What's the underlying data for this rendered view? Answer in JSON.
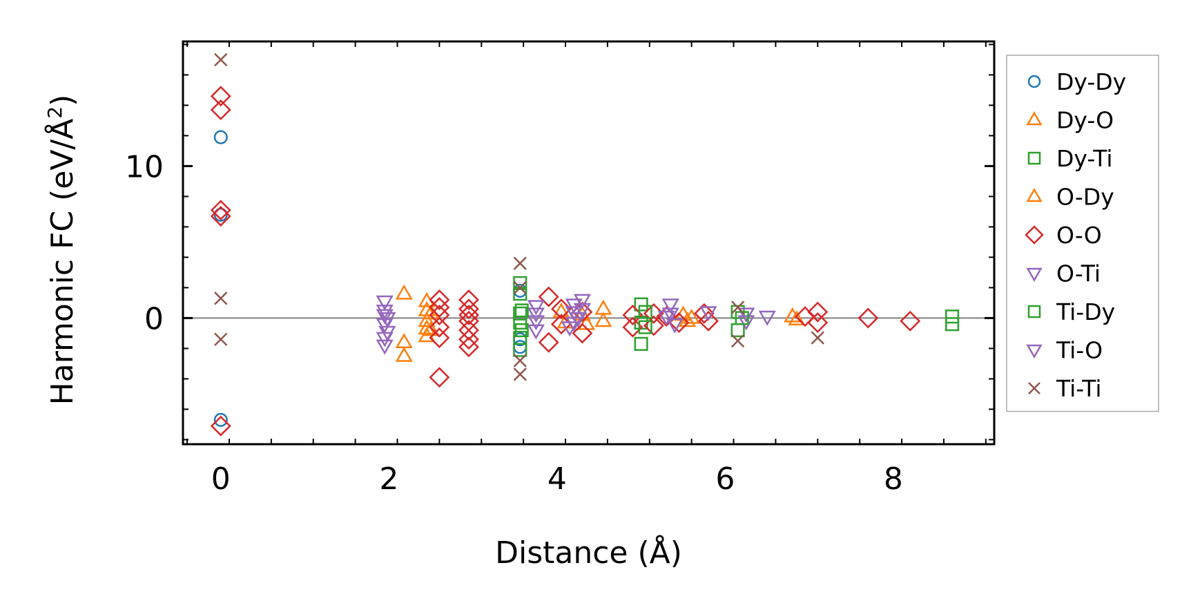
{
  "chart_data": {
    "type": "scatter",
    "title": "",
    "xlabel": "Distance (Å)",
    "ylabel_main": "Harmonic FC (eV/Å",
    "ylabel_sup": "2",
    "ylabel_close": ")",
    "xlim": [
      -0.45,
      9.2
    ],
    "ylim": [
      -8.3,
      18.2
    ],
    "xticks": [
      0,
      2,
      4,
      6,
      8
    ],
    "yticks": [
      0,
      10
    ],
    "xtick_labels": [
      "0",
      "2",
      "4",
      "6",
      "8"
    ],
    "ytick_labels": [
      "0",
      "10"
    ],
    "zero_line": true,
    "grid": false,
    "legend_position": "outside-right",
    "series": [
      {
        "name": "Dy-Dy",
        "marker": "circle",
        "color": "#1f77b4",
        "points": [
          [
            0,
            11.9
          ],
          [
            0,
            6.8
          ],
          [
            0,
            -6.7
          ],
          [
            3.56,
            1.8
          ],
          [
            3.56,
            -1.4
          ],
          [
            3.56,
            -1.9
          ]
        ]
      },
      {
        "name": "Dy-O",
        "marker": "triangle-up",
        "color": "#ff7f0e",
        "points": [
          [
            2.18,
            1.6
          ],
          [
            2.18,
            -1.6
          ],
          [
            2.18,
            -2.5
          ],
          [
            2.45,
            1.1
          ],
          [
            2.45,
            0.5
          ],
          [
            2.45,
            -0.2
          ],
          [
            2.45,
            -0.7
          ],
          [
            2.45,
            -1.2
          ],
          [
            4.05,
            0.4
          ],
          [
            4.1,
            -0.3
          ],
          [
            4.55,
            0.6
          ],
          [
            4.55,
            -0.2
          ],
          [
            5.5,
            0.2
          ],
          [
            5.55,
            -0.2
          ],
          [
            6.8,
            0.1
          ],
          [
            6.85,
            -0.1
          ]
        ]
      },
      {
        "name": "Dy-Ti",
        "marker": "square",
        "color": "#2ca02c",
        "points": [
          [
            3.56,
            2.3
          ],
          [
            3.56,
            1.6
          ],
          [
            3.56,
            0.3
          ],
          [
            3.56,
            -0.3
          ],
          [
            3.56,
            -1.3
          ],
          [
            3.56,
            -2.1
          ],
          [
            5.0,
            0.9
          ],
          [
            5.0,
            -0.3
          ],
          [
            5.0,
            -1.7
          ],
          [
            6.15,
            0.4
          ],
          [
            6.15,
            -0.8
          ],
          [
            8.7,
            0.1
          ],
          [
            8.7,
            -0.4
          ]
        ]
      },
      {
        "name": "O-Dy",
        "marker": "triangle-up",
        "color": "#ff7f0e",
        "points": [
          [
            2.5,
            0.3
          ],
          [
            2.5,
            -0.8
          ],
          [
            4.3,
            0.2
          ],
          [
            4.35,
            -0.4
          ],
          [
            5.6,
            0.0
          ]
        ]
      },
      {
        "name": "O-O",
        "marker": "diamond",
        "color": "#d62728",
        "points": [
          [
            0,
            14.6
          ],
          [
            0,
            13.7
          ],
          [
            0,
            7.1
          ],
          [
            0,
            6.7
          ],
          [
            0,
            -7.1
          ],
          [
            2.6,
            1.2
          ],
          [
            2.6,
            0.7
          ],
          [
            2.6,
            0.2
          ],
          [
            2.6,
            -0.6
          ],
          [
            2.6,
            -1.3
          ],
          [
            2.6,
            -3.9
          ],
          [
            2.95,
            1.2
          ],
          [
            2.95,
            0.6
          ],
          [
            2.95,
            0.2
          ],
          [
            2.95,
            -0.2
          ],
          [
            2.95,
            -0.8
          ],
          [
            2.95,
            -1.4
          ],
          [
            2.95,
            -1.9
          ],
          [
            3.9,
            1.4
          ],
          [
            3.9,
            -1.6
          ],
          [
            4.05,
            0.6
          ],
          [
            4.05,
            -0.4
          ],
          [
            4.3,
            0.4
          ],
          [
            4.3,
            -1.0
          ],
          [
            4.9,
            0.2
          ],
          [
            4.9,
            -0.6
          ],
          [
            5.15,
            0.3
          ],
          [
            5.15,
            -0.5
          ],
          [
            5.3,
            0.1
          ],
          [
            5.45,
            -0.3
          ],
          [
            5.75,
            0.3
          ],
          [
            5.8,
            -0.2
          ],
          [
            6.95,
            0.1
          ],
          [
            7.1,
            0.4
          ],
          [
            7.1,
            -0.3
          ],
          [
            7.7,
            0.0
          ],
          [
            8.2,
            -0.2
          ]
        ]
      },
      {
        "name": "O-Ti",
        "marker": "triangle-down",
        "color": "#9467bd",
        "points": [
          [
            1.95,
            1.1
          ],
          [
            1.95,
            0.5
          ],
          [
            1.95,
            0.2
          ],
          [
            1.95,
            -0.4
          ],
          [
            1.95,
            -1.3
          ],
          [
            1.95,
            -1.8
          ],
          [
            3.75,
            0.8
          ],
          [
            3.75,
            0.3
          ],
          [
            3.75,
            -0.2
          ],
          [
            3.75,
            -0.8
          ],
          [
            4.2,
            0.9
          ],
          [
            4.2,
            0.4
          ],
          [
            4.2,
            -0.3
          ],
          [
            4.3,
            1.2
          ],
          [
            4.3,
            0.6
          ],
          [
            5.35,
            0.9
          ],
          [
            5.35,
            0.3
          ],
          [
            5.4,
            -0.4
          ],
          [
            5.8,
            0.4
          ],
          [
            6.25,
            0.3
          ],
          [
            6.25,
            -0.2
          ],
          [
            6.5,
            0.1
          ]
        ]
      },
      {
        "name": "Ti-Dy",
        "marker": "square",
        "color": "#2ca02c",
        "points": [
          [
            3.58,
            0.5
          ],
          [
            3.58,
            -0.8
          ],
          [
            5.05,
            0.4
          ],
          [
            5.05,
            -0.6
          ],
          [
            6.2,
            0.0
          ]
        ]
      },
      {
        "name": "Ti-O",
        "marker": "triangle-down",
        "color": "#9467bd",
        "points": [
          [
            1.98,
            0.0
          ],
          [
            1.98,
            -0.9
          ],
          [
            4.25,
            0.0
          ],
          [
            4.15,
            -0.6
          ],
          [
            5.3,
            0.1
          ]
        ]
      },
      {
        "name": "Ti-Ti",
        "marker": "x",
        "color": "#8c564b",
        "points": [
          [
            0,
            17.0
          ],
          [
            0,
            1.3
          ],
          [
            0,
            -1.4
          ],
          [
            3.56,
            3.6
          ],
          [
            3.56,
            2.0
          ],
          [
            3.56,
            -2.8
          ],
          [
            3.56,
            -3.7
          ],
          [
            6.15,
            0.7
          ],
          [
            6.15,
            -1.5
          ],
          [
            7.1,
            -1.3
          ]
        ]
      }
    ]
  }
}
